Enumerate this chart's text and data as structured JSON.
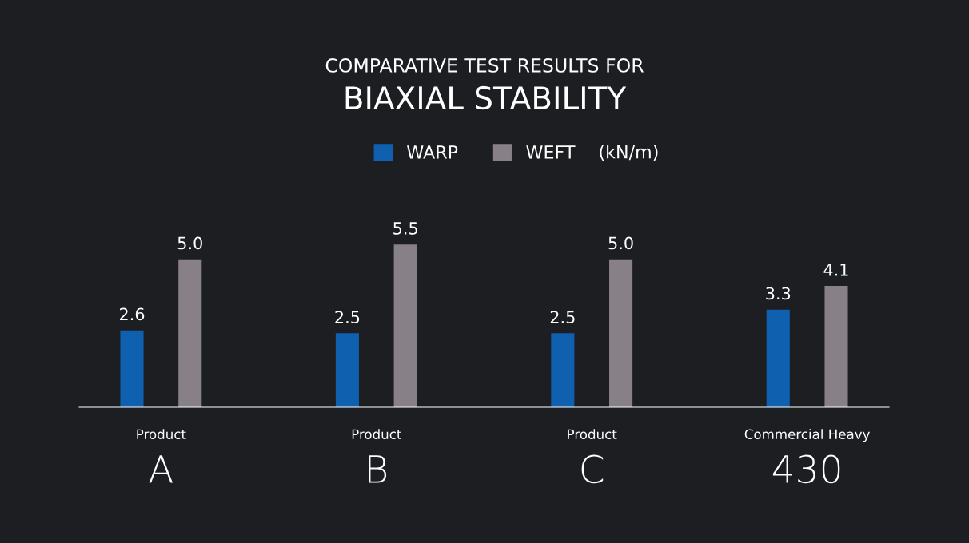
{
  "chart_data": {
    "type": "bar",
    "title": "COMPARATIVE TEST RESULTS FOR",
    "subtitle": "BIAXIAL STABILITY",
    "legend_title": "(kN/m)",
    "categories": [
      "Product\nA",
      "Product\nB",
      "Product\nC",
      "Commercial Heavy\n430"
    ],
    "series": [
      {
        "name": "WARP",
        "color": "#1060b0",
        "values": [
          2.6,
          2.5,
          2.5,
          3.3
        ],
        "value_labels": [
          "2.6",
          "2.5",
          "2.5",
          "3.3"
        ]
      },
      {
        "name": "WEFT",
        "color": "#878187",
        "values": [
          5.0,
          5.5,
          5.0,
          4.1
        ],
        "value_labels": [
          "5.0",
          "5.5",
          "5.0",
          "4.1"
        ]
      }
    ],
    "legend": "top",
    "grid": false
  }
}
